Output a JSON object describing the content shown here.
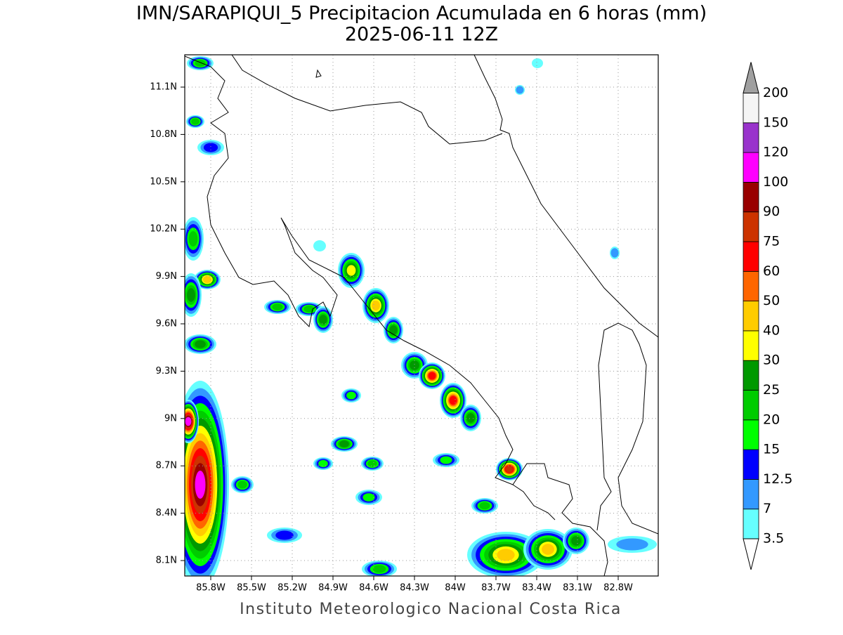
{
  "title": "IMN/SARAPIQUI_5 Precipitacion Acumulada en 6 horas (mm)",
  "subtitle": "2025-06-11 12Z",
  "map": {
    "x_labels": [
      "85.8W",
      "85.5W",
      "85.2W",
      "84.9W",
      "84.6W",
      "84.3W",
      "84W",
      "83.7W",
      "83.4W",
      "83.1W",
      "82.8W"
    ],
    "y_labels": [
      "11.1N",
      "10.8N",
      "10.5N",
      "10.2N",
      "9.9N",
      "9.6N",
      "9.3N",
      "9N",
      "8.7N",
      "8.4N",
      "8.1N"
    ]
  },
  "colorbar": {
    "levels": [
      3.5,
      7,
      12.5,
      15,
      20,
      25,
      30,
      40,
      50,
      60,
      75,
      90,
      100,
      120,
      150,
      200
    ],
    "colors": [
      "#66ffff",
      "#3399ff",
      "#0000ff",
      "#00ff00",
      "#00cc00",
      "#009900",
      "#ffff00",
      "#ffcc00",
      "#ff6600",
      "#ff0000",
      "#cc3300",
      "#990000",
      "#ff00ff",
      "#9933cc",
      "#f5f5f5"
    ],
    "below_color": "#ffffff",
    "above_color": "#a0a0a0"
  },
  "footer": "Instituto Meteorologico Nacional Costa Rica"
}
